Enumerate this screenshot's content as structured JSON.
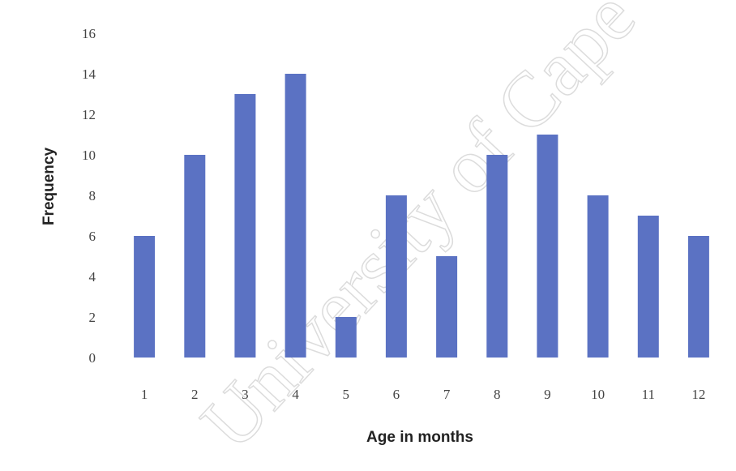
{
  "chart_data": {
    "type": "bar",
    "categories": [
      "1",
      "2",
      "3",
      "4",
      "5",
      "6",
      "7",
      "8",
      "9",
      "10",
      "11",
      "12"
    ],
    "values": [
      6,
      10,
      13,
      14,
      2,
      8,
      5,
      10,
      11,
      8,
      7,
      6
    ],
    "xlabel": "Age in months",
    "ylabel": "Frequency",
    "ylim": [
      0,
      16
    ],
    "yticks": [
      0,
      2,
      4,
      6,
      8,
      10,
      12,
      14,
      16
    ],
    "grid": false,
    "legend": "none",
    "bar_color": "#5B72C3"
  },
  "watermark": "University of Cape Town"
}
